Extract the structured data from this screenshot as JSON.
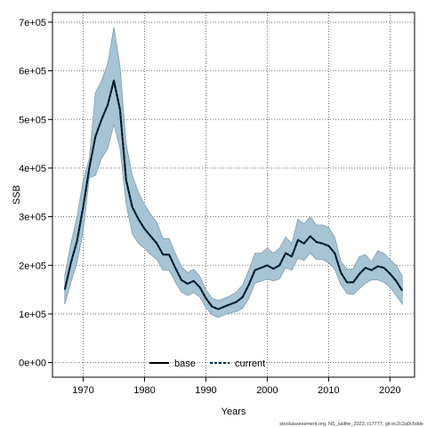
{
  "chart_data": {
    "type": "line",
    "xlabel": "Years",
    "ylabel": "SSB",
    "xlim": [
      1965,
      2024
    ],
    "ylim": [
      -30000,
      720000
    ],
    "xticks": [
      1970,
      1980,
      1990,
      2000,
      2010,
      2020
    ],
    "yticks": [
      0,
      100000,
      200000,
      300000,
      400000,
      500000,
      600000,
      700000
    ],
    "ytick_labels": [
      "0e+00",
      "1e+05",
      "2e+05",
      "3e+05",
      "4e+05",
      "5e+05",
      "6e+05",
      "7e+05"
    ],
    "grid": true,
    "legend_position": "bottom-center",
    "footer": "stockassessment.org, NS_saithe_2023, r17777, git:ec2c2a0c6dde",
    "colors": {
      "band_fill": "#a6c4d4",
      "band_stroke": "#7e9eb0",
      "base_line": "#000000",
      "current_line": "#00304f"
    },
    "x": [
      1967,
      1968,
      1969,
      1970,
      1971,
      1972,
      1973,
      1974,
      1975,
      1976,
      1977,
      1978,
      1979,
      1980,
      1981,
      1982,
      1983,
      1984,
      1985,
      1986,
      1987,
      1988,
      1989,
      1990,
      1991,
      1992,
      1993,
      1994,
      1995,
      1996,
      1997,
      1998,
      1999,
      2000,
      2001,
      2002,
      2003,
      2004,
      2005,
      2006,
      2007,
      2008,
      2009,
      2010,
      2011,
      2012,
      2013,
      2014,
      2015,
      2016,
      2017,
      2018,
      2019,
      2020,
      2021,
      2022
    ],
    "series": [
      {
        "name": "base",
        "style": "solid",
        "values": [
          150000,
          205000,
          250000,
          320000,
          400000,
          465000,
          500000,
          530000,
          580000,
          520000,
          375000,
          320000,
          295000,
          275000,
          260000,
          245000,
          222000,
          222000,
          195000,
          170000,
          162000,
          168000,
          155000,
          132000,
          115000,
          110000,
          115000,
          120000,
          125000,
          135000,
          160000,
          190000,
          195000,
          200000,
          193000,
          200000,
          225000,
          218000,
          252000,
          245000,
          260000,
          248000,
          245000,
          240000,
          225000,
          185000,
          165000,
          165000,
          182000,
          195000,
          190000,
          198000,
          195000,
          183000,
          168000,
          148000
        ]
      },
      {
        "name": "current",
        "style": "dashed",
        "values": [
          150000,
          205000,
          250000,
          320000,
          400000,
          465000,
          500000,
          530000,
          580000,
          520000,
          375000,
          320000,
          295000,
          275000,
          260000,
          245000,
          222000,
          222000,
          195000,
          170000,
          162000,
          168000,
          155000,
          132000,
          115000,
          110000,
          115000,
          120000,
          125000,
          135000,
          160000,
          190000,
          195000,
          200000,
          193000,
          200000,
          225000,
          218000,
          252000,
          245000,
          260000,
          248000,
          245000,
          240000,
          225000,
          185000,
          165000,
          165000,
          182000,
          195000,
          190000,
          198000,
          195000,
          183000,
          168000,
          148000
        ]
      }
    ],
    "upper": [
      180000,
      245000,
      300000,
      375000,
      420000,
      555000,
      580000,
      615000,
      690000,
      610000,
      450000,
      385000,
      350000,
      325000,
      305000,
      288000,
      255000,
      255000,
      225000,
      198000,
      185000,
      192000,
      178000,
      150000,
      132000,
      128000,
      132000,
      138000,
      145000,
      160000,
      190000,
      225000,
      225000,
      235000,
      225000,
      235000,
      258000,
      245000,
      295000,
      285000,
      300000,
      283000,
      283000,
      278000,
      258000,
      208000,
      192000,
      193000,
      218000,
      222000,
      207000,
      230000,
      225000,
      212000,
      200000,
      178000
    ],
    "lower": [
      120000,
      165000,
      205000,
      270000,
      380000,
      385000,
      420000,
      440000,
      490000,
      440000,
      325000,
      265000,
      245000,
      235000,
      222000,
      212000,
      190000,
      190000,
      166000,
      145000,
      138000,
      144000,
      135000,
      113000,
      98000,
      93000,
      98000,
      102000,
      105000,
      112000,
      132000,
      163000,
      167000,
      172000,
      168000,
      172000,
      195000,
      190000,
      215000,
      210000,
      225000,
      212000,
      212000,
      205000,
      192000,
      160000,
      142000,
      140000,
      152000,
      163000,
      170000,
      170000,
      165000,
      155000,
      138000,
      120000
    ]
  }
}
